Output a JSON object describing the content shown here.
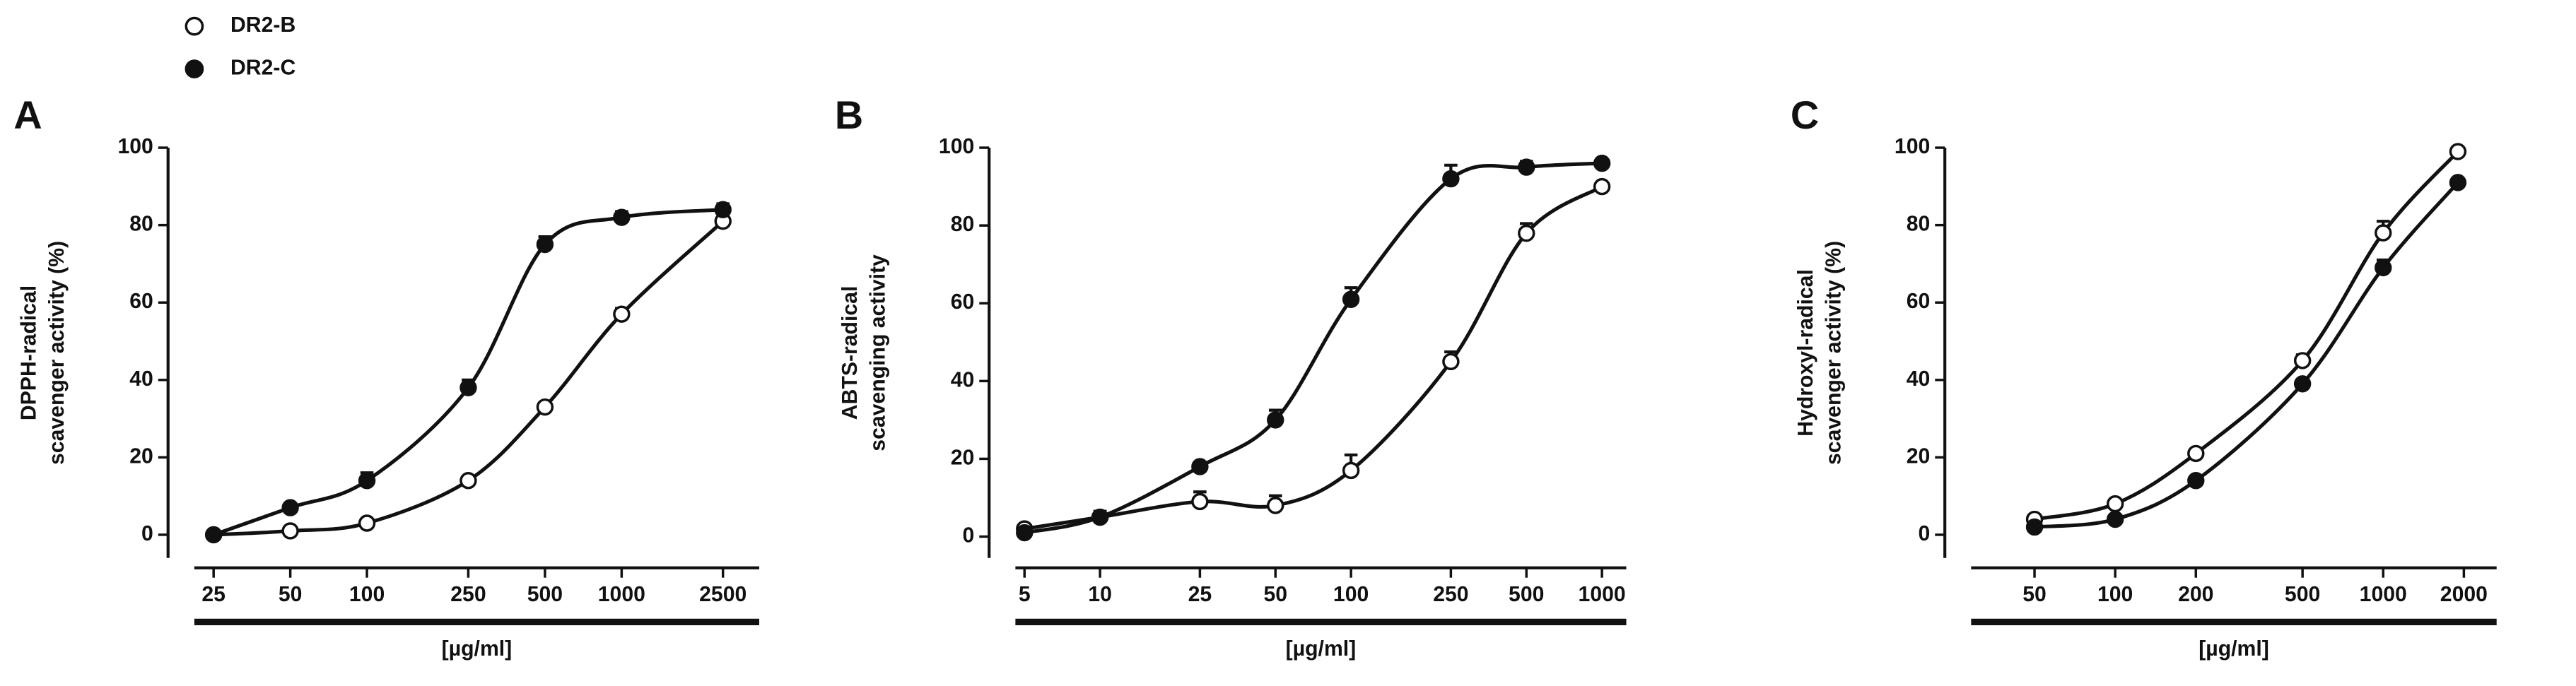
{
  "chart_data": [
    {
      "type": "scatter-curve",
      "panel": "A",
      "y_label": [
        "DPPH-radical",
        "scavenger activity (%)"
      ],
      "x_label": "[µg/ml]",
      "log_x": true,
      "x": [
        25,
        50,
        100,
        250,
        500,
        1000,
        2500
      ],
      "series": [
        {
          "name": "DR2-B",
          "marker": "open",
          "color": "#111111",
          "values": [
            0,
            1,
            3,
            14,
            33,
            57,
            81
          ],
          "errors": [
            0.5,
            0.5,
            0.8,
            1,
            1,
            1.5,
            1.5
          ]
        },
        {
          "name": "DR2-C",
          "marker": "filled",
          "color": "#111111",
          "values": [
            0,
            7,
            14,
            38,
            75,
            82,
            84
          ],
          "errors": [
            0.5,
            0.5,
            2,
            2,
            2,
            1.5,
            1.5
          ]
        }
      ],
      "xlim": [
        21,
        3470
      ],
      "xticks": [
        25,
        50,
        100,
        250,
        500,
        1000,
        2500
      ],
      "ylim": [
        -6,
        100
      ],
      "yticks": [
        0,
        20,
        40,
        60,
        80,
        100
      ]
    },
    {
      "type": "scatter-curve",
      "panel": "B",
      "y_label": [
        "ABTS-radical",
        "scavenging activity"
      ],
      "x_label": "[µg/ml]",
      "log_x": true,
      "x": [
        5,
        10,
        25,
        50,
        100,
        250,
        500,
        1000
      ],
      "series": [
        {
          "marker": "open",
          "color": "#111111",
          "values": [
            2,
            5,
            9,
            8,
            17,
            45,
            78,
            90
          ],
          "errors": [
            1,
            1.5,
            2.5,
            2.5,
            4,
            2.5,
            2.5,
            1
          ]
        },
        {
          "marker": "filled",
          "color": "#111111",
          "values": [
            1,
            5,
            18,
            30,
            61,
            92,
            95,
            96
          ],
          "errors": [
            0.5,
            1.5,
            0.5,
            2.5,
            3,
            3.5,
            1.5,
            1
          ]
        }
      ],
      "xlim": [
        4.6,
        1250
      ],
      "xticks": [
        5,
        10,
        25,
        50,
        100,
        250,
        500,
        1000
      ],
      "ylim": [
        -5.5,
        100
      ],
      "yticks": [
        0,
        20,
        40,
        60,
        80,
        100
      ]
    },
    {
      "type": "scatter-curve",
      "panel": "C",
      "y_label": [
        "Hydroxyl-radical",
        "scavenger activity (%)"
      ],
      "x_label": "[µg/ml]",
      "log_x": true,
      "x": [
        50,
        100,
        200,
        500,
        1000,
        1900
      ],
      "series": [
        {
          "marker": "open",
          "color": "#111111",
          "values": [
            4,
            8,
            21,
            45,
            78,
            99
          ],
          "errors": [
            0.5,
            0.5,
            1,
            1.5,
            3,
            1
          ]
        },
        {
          "marker": "filled",
          "color": "#111111",
          "values": [
            2,
            4,
            14,
            39,
            69,
            91
          ],
          "errors": [
            0.5,
            0.5,
            1,
            1,
            2,
            1
          ]
        }
      ],
      "xlim": [
        29,
        2650
      ],
      "xticks": [
        50,
        100,
        200,
        500,
        1000,
        2000
      ],
      "ylim": [
        -6,
        100
      ],
      "yticks": [
        0,
        20,
        40,
        60,
        80,
        100
      ]
    }
  ]
}
